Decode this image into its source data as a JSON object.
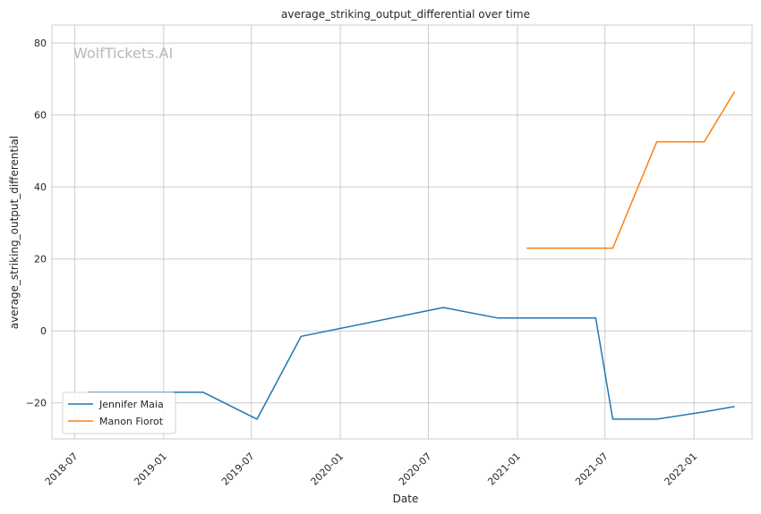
{
  "chart_data": {
    "type": "line",
    "title": "average_striking_output_differential over time",
    "xlabel": "Date",
    "ylabel": "average_striking_output_differential",
    "watermark": "WolfTickets.AI",
    "x_ticks": [
      "2018-07",
      "2019-01",
      "2019-07",
      "2020-01",
      "2020-07",
      "2021-01",
      "2021-07",
      "2022-01"
    ],
    "y_ticks": [
      -20,
      0,
      20,
      40,
      60,
      80
    ],
    "xlim": [
      "2018-05-15",
      "2022-05-01"
    ],
    "ylim": [
      -30,
      85
    ],
    "grid": true,
    "legend_position": "lower-left",
    "series": [
      {
        "name": "Jennifer Maia",
        "color": "#1f77b4",
        "points": [
          {
            "x": "2018-07-28",
            "y": -17
          },
          {
            "x": "2019-03-23",
            "y": -17
          },
          {
            "x": "2019-07-13",
            "y": -24.5
          },
          {
            "x": "2019-10-12",
            "y": -1.5
          },
          {
            "x": "2020-08-01",
            "y": 6.5
          },
          {
            "x": "2020-11-21",
            "y": 3.6
          },
          {
            "x": "2021-06-12",
            "y": 3.6
          },
          {
            "x": "2021-07-17",
            "y": -24.5
          },
          {
            "x": "2021-10-16",
            "y": -24.5
          },
          {
            "x": "2022-01-22",
            "y": -22.5
          },
          {
            "x": "2022-03-26",
            "y": -21
          }
        ]
      },
      {
        "name": "Manon Fiorot",
        "color": "#ff7f0e",
        "points": [
          {
            "x": "2021-01-20",
            "y": 23
          },
          {
            "x": "2021-07-17",
            "y": 23
          },
          {
            "x": "2021-10-16",
            "y": 52.5
          },
          {
            "x": "2022-01-22",
            "y": 52.5
          },
          {
            "x": "2022-03-26",
            "y": 66.5
          }
        ]
      }
    ]
  }
}
